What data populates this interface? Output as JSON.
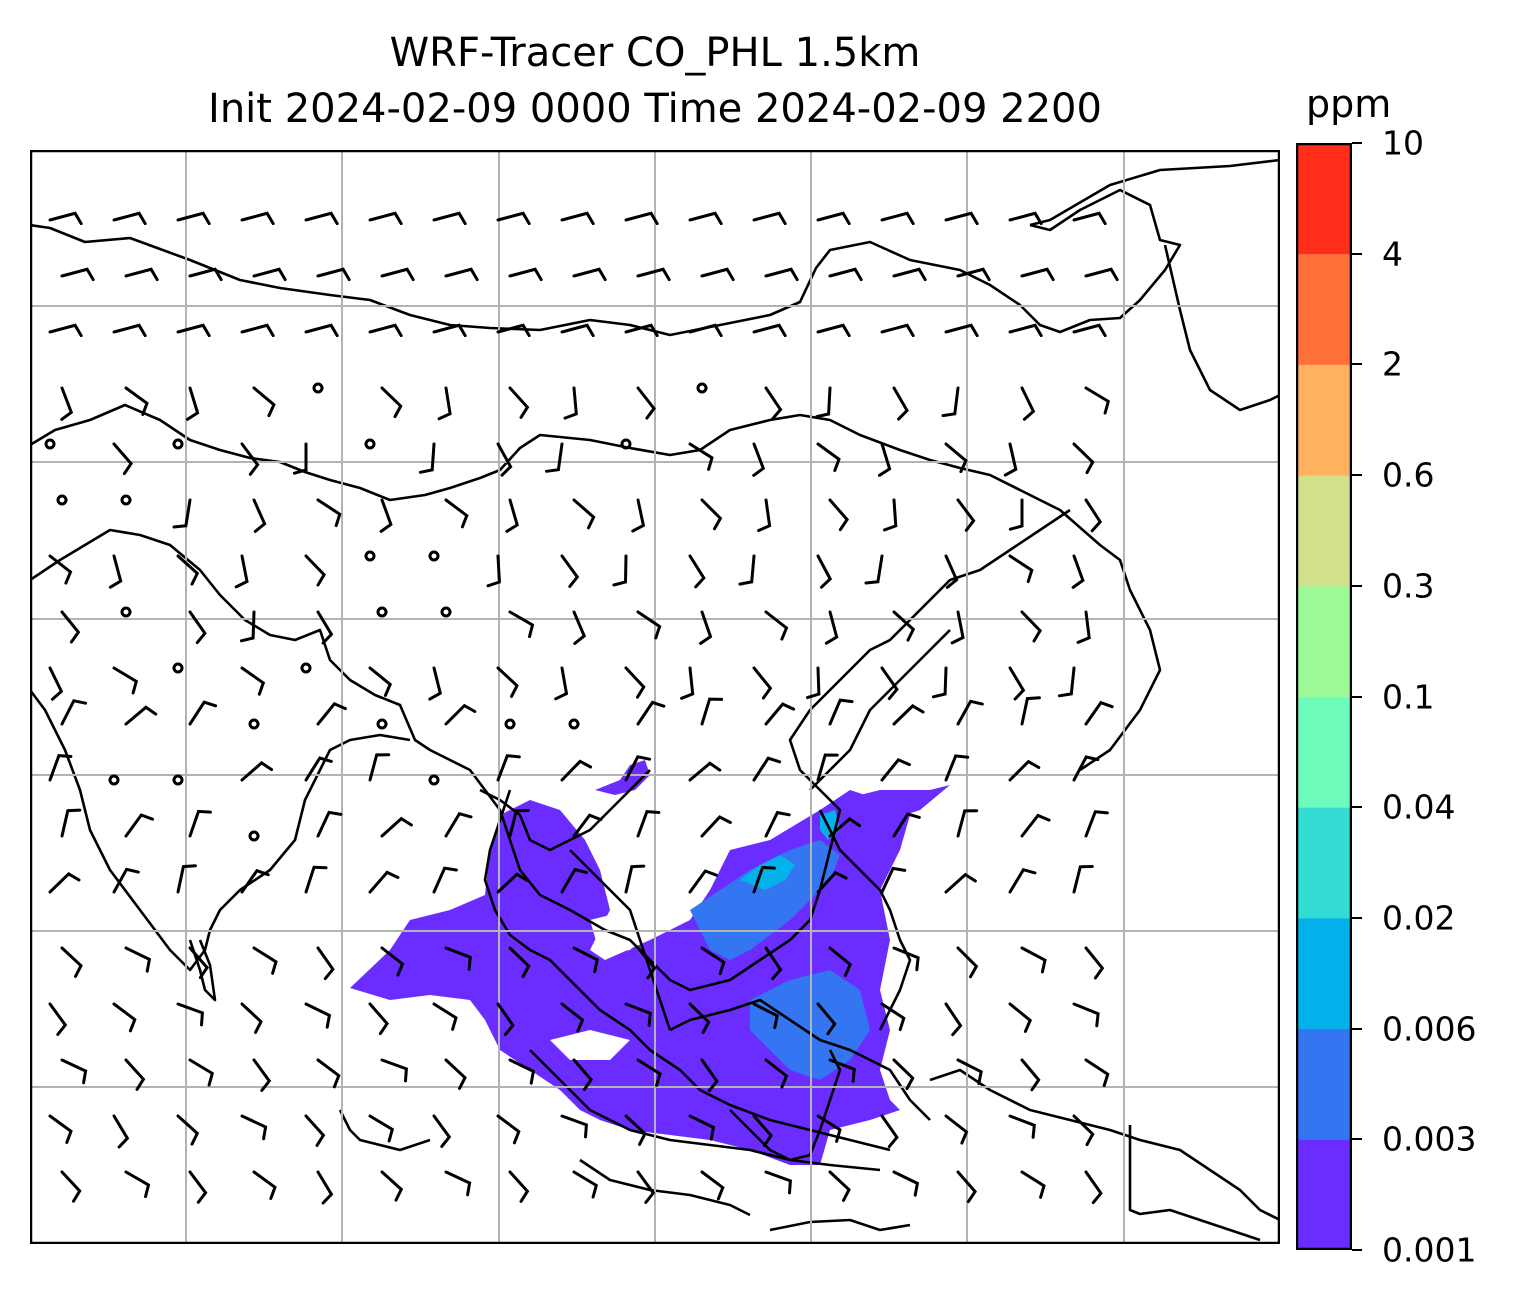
{
  "title": {
    "line1": "WRF-Tracer CO_PHL 1.5km",
    "line2": "Init 2024-02-09 0000 Time 2024-02-09 2200"
  },
  "colorbar": {
    "unit": "ppm",
    "ticks": [
      "0.001",
      "0.003",
      "0.006",
      "0.02",
      "0.04",
      "0.1",
      "0.3",
      "0.6",
      "2",
      "4",
      "10"
    ],
    "colors": [
      "#6a2cff",
      "#3476f2",
      "#03b2eb",
      "#32dcd4",
      "#6efcbd",
      "#9dfa98",
      "#d0e18a",
      "#ffb15f",
      "#ff703b",
      "#ff2d1a"
    ]
  },
  "map": {
    "region": "East and Southeast Asia",
    "overlay": "wind barbs",
    "tracer_fill_color": "#6a2cff",
    "tracer_high_color": "#3476f2",
    "tracer_peak_color": "#03b2eb",
    "gridlines": true
  }
}
